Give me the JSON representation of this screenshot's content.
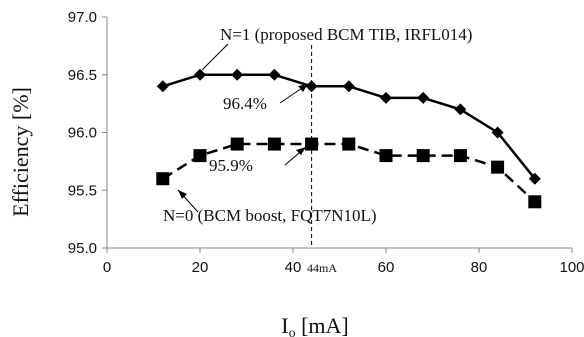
{
  "chart_data": {
    "type": "line",
    "xlabel": {
      "main": "I",
      "sub": "o",
      "rest": " [mA]"
    },
    "ylabel": "Efficiency [%]",
    "xlim": [
      0,
      100
    ],
    "ylim": [
      95.0,
      97.0
    ],
    "xticks": [
      0,
      20,
      40,
      60,
      80,
      100
    ],
    "yticks": [
      95.0,
      95.5,
      96.0,
      96.5,
      97.0
    ],
    "ytick_labels": [
      "95.0",
      "95.5",
      "96.0",
      "96.5",
      "97.0"
    ],
    "series": [
      {
        "name": "N=1 (proposed BCM TIB, IRFL014)",
        "style": "solid",
        "marker": "diamond",
        "x": [
          12,
          20,
          28,
          36,
          44,
          52,
          60,
          68,
          76,
          84,
          92
        ],
        "y": [
          96.4,
          96.5,
          96.5,
          96.5,
          96.4,
          96.4,
          96.3,
          96.3,
          96.2,
          96.0,
          95.6
        ]
      },
      {
        "name": "N=0 (BCM boost, FQT7N10L)",
        "style": "dashed",
        "marker": "square",
        "x": [
          12,
          20,
          28,
          36,
          44,
          52,
          60,
          68,
          76,
          84,
          92
        ],
        "y": [
          95.6,
          95.8,
          95.9,
          95.9,
          95.9,
          95.9,
          95.8,
          95.8,
          95.8,
          95.7,
          95.4
        ]
      }
    ],
    "annotations": {
      "n1_label": "N=1 (proposed BCM TIB, IRFL014)",
      "n0_label": "N=0 (BCM boost, FQT7N10L)",
      "n1_value": "96.4%",
      "n0_value": "95.9%",
      "vline_label": "44mA",
      "vline_x": 44
    },
    "grid": false,
    "colors": {
      "line": "#000000",
      "marker": "#000000",
      "axis": "#888888"
    }
  }
}
